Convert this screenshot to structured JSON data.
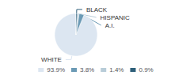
{
  "chart_data": {
    "type": "pie",
    "categories": [
      "WHITE",
      "A.I.",
      "HISPANIC",
      "BLACK"
    ],
    "values": [
      93.9,
      3.8,
      1.4,
      0.9
    ],
    "value_labels": [
      "93.9%",
      "3.8%",
      "1.4%",
      "0.9%"
    ],
    "colors": [
      "#dce6f1",
      "#6b9ab5",
      "#b8ccd8",
      "#2e5f7a"
    ],
    "legend": "bottom"
  }
}
